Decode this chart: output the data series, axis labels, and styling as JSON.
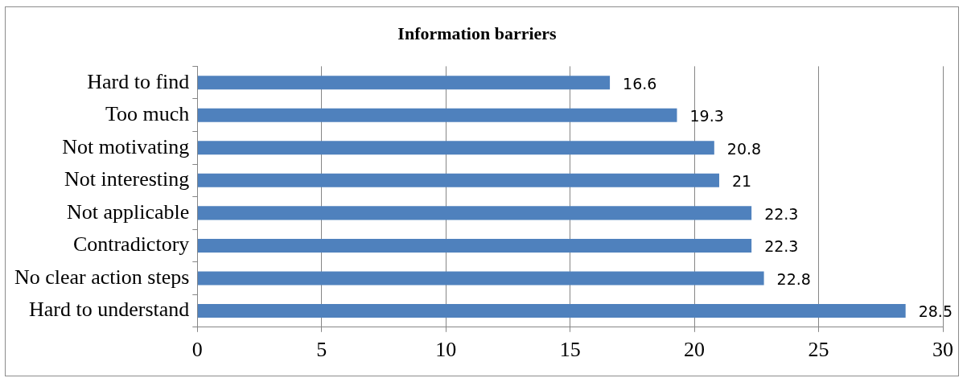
{
  "chart_data": {
    "type": "bar",
    "orientation": "horizontal",
    "title": "Information barriers",
    "categories": [
      "Hard to find",
      "Too much",
      "Not motivating",
      "Not interesting",
      "Not applicable",
      "Contradictory",
      "No clear action steps",
      "Hard to understand"
    ],
    "values": [
      16.6,
      19.3,
      20.8,
      21,
      22.3,
      22.3,
      22.8,
      28.5
    ],
    "color": "#4f81bd",
    "xlim": [
      0,
      30
    ],
    "xticks": [
      0,
      5,
      10,
      15,
      20,
      25,
      30
    ],
    "grid": "x",
    "legend": false,
    "data_labels": true
  }
}
